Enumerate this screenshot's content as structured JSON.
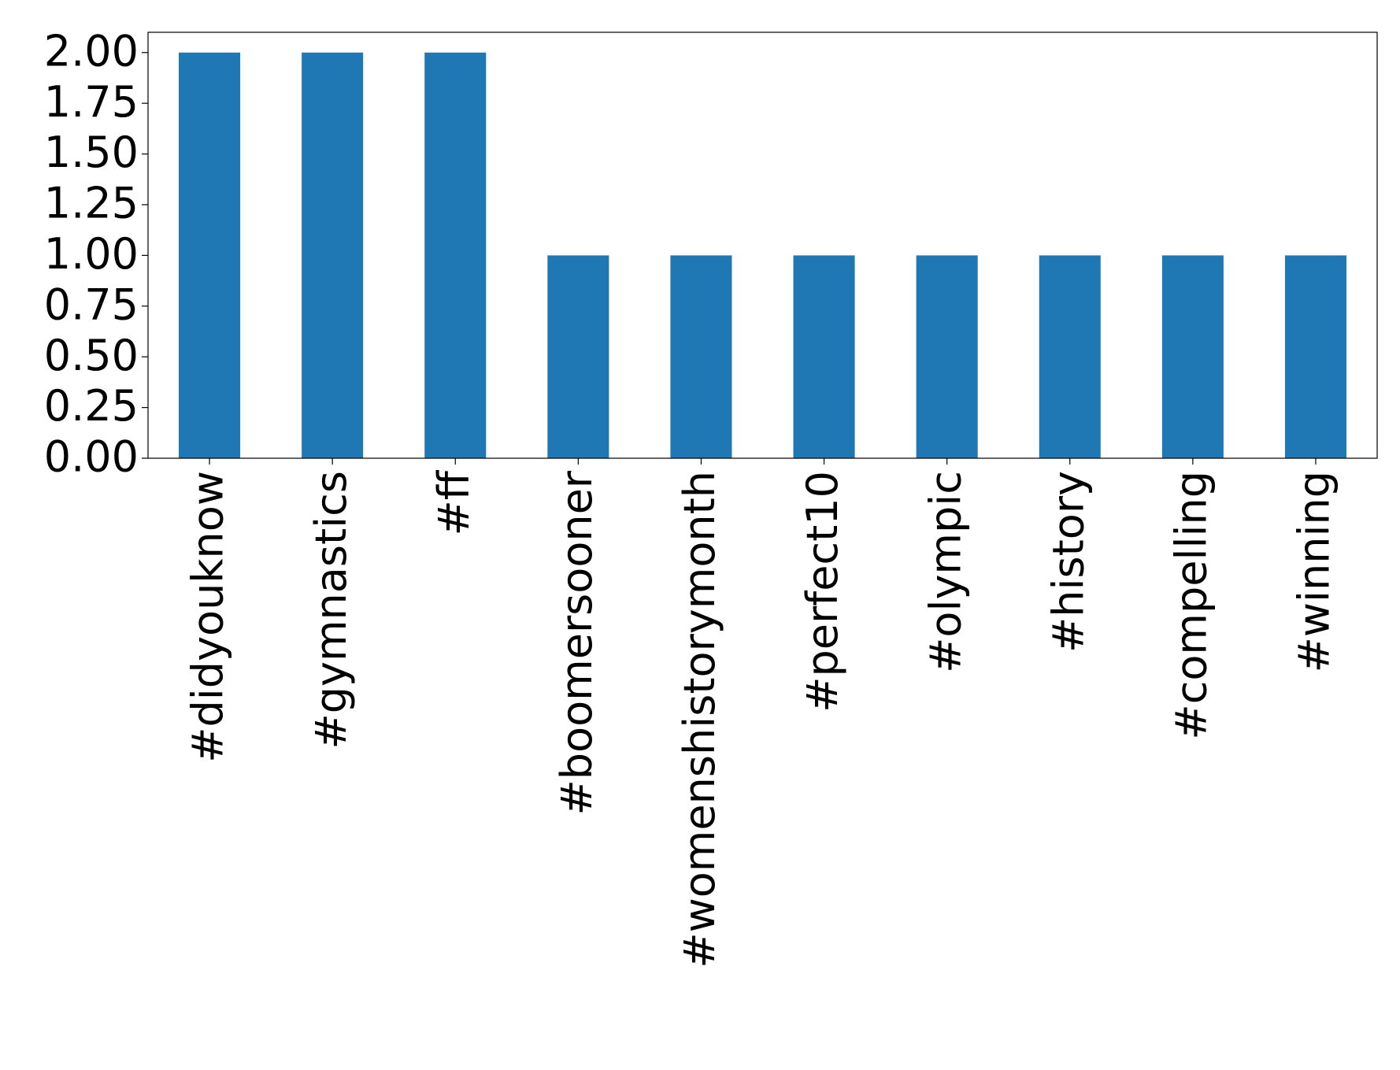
{
  "chart_data": {
    "type": "bar",
    "categories": [
      "#didyouknow",
      "#gymnastics",
      "#ff",
      "#boomersooner",
      "#womenshistorymonth",
      "#perfect10",
      "#olympic",
      "#history",
      "#compelling",
      "#winning"
    ],
    "values": [
      2,
      2,
      2,
      1,
      1,
      1,
      1,
      1,
      1,
      1
    ],
    "color": "#1f77b4",
    "ylim": [
      0,
      2.1
    ],
    "yticks": [
      {
        "value": 0,
        "label": "0.00"
      },
      {
        "value": 0.25,
        "label": "0.25"
      },
      {
        "value": 0.5,
        "label": "0.50"
      },
      {
        "value": 0.75,
        "label": "0.75"
      },
      {
        "value": 1,
        "label": "1.00"
      },
      {
        "value": 1.25,
        "label": "1.25"
      },
      {
        "value": 1.5,
        "label": "1.50"
      },
      {
        "value": 1.75,
        "label": "1.75"
      },
      {
        "value": 2,
        "label": "2.00"
      }
    ],
    "grid": false
  }
}
